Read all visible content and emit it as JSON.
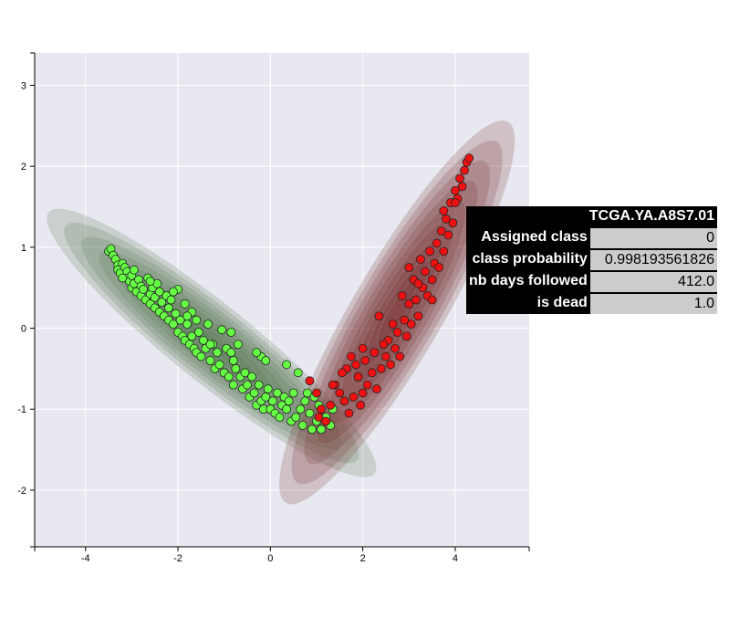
{
  "chart_data": {
    "type": "scatter",
    "title": "",
    "xlabel": "",
    "ylabel": "",
    "xlim": [
      -5.1,
      5.6
    ],
    "ylim": [
      -2.7,
      3.4
    ],
    "xticks": [
      -4,
      -2,
      0,
      2,
      4
    ],
    "yticks": [
      -2,
      -1,
      0,
      1,
      2,
      3
    ],
    "xtick_labels": [
      "-4",
      "-2",
      "0",
      "2",
      "4"
    ],
    "ytick_labels": [
      "-2",
      "-1",
      "0",
      "1",
      "2",
      "3"
    ],
    "background_color": "#e8e8f0",
    "grid": true,
    "series": [
      {
        "color": "#66ff44",
        "density_color": "#5d7d55",
        "points": [
          [
            -3.5,
            0.95
          ],
          [
            -3.45,
            0.98
          ],
          [
            -3.4,
            0.9
          ],
          [
            -3.35,
            0.85
          ],
          [
            -3.3,
            0.78
          ],
          [
            -3.3,
            0.72
          ],
          [
            -3.25,
            0.68
          ],
          [
            -3.2,
            0.8
          ],
          [
            -3.15,
            0.75
          ],
          [
            -3.1,
            0.7
          ],
          [
            -3.1,
            0.62
          ],
          [
            -3.05,
            0.58
          ],
          [
            -3.0,
            0.65
          ],
          [
            -3.0,
            0.5
          ],
          [
            -2.95,
            0.55
          ],
          [
            -2.9,
            0.45
          ],
          [
            -2.85,
            0.6
          ],
          [
            -2.8,
            0.52
          ],
          [
            -2.8,
            0.4
          ],
          [
            -2.75,
            0.48
          ],
          [
            -2.7,
            0.35
          ],
          [
            -2.65,
            0.62
          ],
          [
            -2.6,
            0.42
          ],
          [
            -2.6,
            0.3
          ],
          [
            -2.55,
            0.5
          ],
          [
            -2.5,
            0.38
          ],
          [
            -2.5,
            0.25
          ],
          [
            -2.45,
            0.55
          ],
          [
            -2.4,
            0.45
          ],
          [
            -2.4,
            0.2
          ],
          [
            -2.35,
            0.32
          ],
          [
            -2.3,
            0.15
          ],
          [
            -2.25,
            0.4
          ],
          [
            -2.2,
            0.25
          ],
          [
            -2.2,
            0.1
          ],
          [
            -2.15,
            0.35
          ],
          [
            -2.1,
            0.05
          ],
          [
            -2.05,
            0.18
          ],
          [
            -2.0,
            0.48
          ],
          [
            -2.0,
            -0.05
          ],
          [
            -1.95,
            0.1
          ],
          [
            -1.9,
            -0.1
          ],
          [
            -1.85,
            0.3
          ],
          [
            -1.85,
            -0.15
          ],
          [
            -1.8,
            0.05
          ],
          [
            -1.75,
            -0.2
          ],
          [
            -1.7,
            0.2
          ],
          [
            -1.7,
            -0.1
          ],
          [
            -1.65,
            -0.25
          ],
          [
            -1.6,
            0.1
          ],
          [
            -1.6,
            -0.3
          ],
          [
            -1.55,
            -0.05
          ],
          [
            -1.5,
            -0.35
          ],
          [
            -1.45,
            -0.15
          ],
          [
            -1.4,
            -0.25
          ],
          [
            -1.35,
            0.05
          ],
          [
            -1.3,
            -0.4
          ],
          [
            -1.25,
            -0.2
          ],
          [
            -1.2,
            -0.5
          ],
          [
            -1.15,
            -0.3
          ],
          [
            -1.1,
            -0.45
          ],
          [
            -1.05,
            -0.02
          ],
          [
            -1.0,
            -0.55
          ],
          [
            -0.95,
            -0.25
          ],
          [
            -0.9,
            -0.6
          ],
          [
            -0.85,
            -0.05
          ],
          [
            -0.8,
            -0.4
          ],
          [
            -0.8,
            -0.7
          ],
          [
            -0.75,
            -0.5
          ],
          [
            -0.7,
            -0.2
          ],
          [
            -0.65,
            -0.6
          ],
          [
            -0.6,
            -0.75
          ],
          [
            -0.55,
            -0.55
          ],
          [
            -0.5,
            -0.7
          ],
          [
            -0.45,
            -0.85
          ],
          [
            -0.4,
            -0.6
          ],
          [
            -0.35,
            -0.8
          ],
          [
            -0.3,
            -0.95
          ],
          [
            -0.25,
            -0.7
          ],
          [
            -0.2,
            -0.9
          ],
          [
            -0.15,
            -1.0
          ],
          [
            -0.1,
            -0.85
          ],
          [
            -0.05,
            -0.75
          ],
          [
            0.0,
            -1.0
          ],
          [
            0.05,
            -0.9
          ],
          [
            0.1,
            -1.05
          ],
          [
            0.15,
            -0.8
          ],
          [
            0.2,
            -1.1
          ],
          [
            0.25,
            -0.95
          ],
          [
            0.3,
            -0.85
          ],
          [
            0.35,
            -1.0
          ],
          [
            0.4,
            -0.9
          ],
          [
            0.45,
            -1.15
          ],
          [
            0.5,
            -0.8
          ],
          [
            0.55,
            -1.1
          ],
          [
            0.6,
            -0.55
          ],
          [
            0.65,
            -1.0
          ],
          [
            0.7,
            -1.2
          ],
          [
            0.75,
            -0.9
          ],
          [
            0.8,
            -0.8
          ],
          [
            0.85,
            -1.05
          ],
          [
            0.9,
            -1.25
          ],
          [
            0.95,
            -0.85
          ],
          [
            1.0,
            -1.15
          ],
          [
            1.05,
            -0.95
          ],
          [
            1.1,
            -1.25
          ],
          [
            1.2,
            -1.1
          ],
          [
            1.3,
            -1.2
          ],
          [
            1.35,
            -1.0
          ],
          [
            0.35,
            -0.45
          ],
          [
            -0.2,
            -0.35
          ],
          [
            -0.1,
            -0.4
          ],
          [
            -0.3,
            -0.3
          ],
          [
            -2.1,
            0.45
          ],
          [
            -1.8,
            0.15
          ],
          [
            -2.6,
            0.58
          ],
          [
            -2.95,
            0.72
          ],
          [
            -3.2,
            0.62
          ],
          [
            -1.3,
            -0.2
          ],
          [
            -0.85,
            -0.3
          ]
        ]
      },
      {
        "color": "#ee1111",
        "density_color": "#7a3838",
        "points": [
          [
            0.85,
            -0.65
          ],
          [
            1.0,
            -0.8
          ],
          [
            1.1,
            -1.0
          ],
          [
            1.2,
            -1.15
          ],
          [
            1.3,
            -0.95
          ],
          [
            1.4,
            -0.7
          ],
          [
            1.5,
            -0.8
          ],
          [
            1.6,
            -0.9
          ],
          [
            1.7,
            -1.05
          ],
          [
            1.65,
            -0.5
          ],
          [
            1.75,
            -0.35
          ],
          [
            1.8,
            -0.85
          ],
          [
            1.9,
            -0.6
          ],
          [
            1.95,
            -0.95
          ],
          [
            2.0,
            -0.8
          ],
          [
            2.05,
            -0.4
          ],
          [
            2.1,
            -0.7
          ],
          [
            2.2,
            -0.55
          ],
          [
            2.25,
            -0.3
          ],
          [
            2.3,
            -0.75
          ],
          [
            2.35,
            0.15
          ],
          [
            2.4,
            -0.5
          ],
          [
            2.5,
            -0.35
          ],
          [
            2.55,
            -0.15
          ],
          [
            2.6,
            -0.45
          ],
          [
            2.65,
            0.05
          ],
          [
            2.7,
            -0.25
          ],
          [
            2.75,
            -0.05
          ],
          [
            2.8,
            -0.35
          ],
          [
            2.85,
            0.4
          ],
          [
            2.9,
            0.1
          ],
          [
            2.95,
            -0.1
          ],
          [
            3.0,
            0.3
          ],
          [
            3.05,
            0.05
          ],
          [
            3.1,
            0.6
          ],
          [
            3.15,
            0.35
          ],
          [
            3.2,
            0.15
          ],
          [
            3.25,
            0.85
          ],
          [
            3.3,
            0.5
          ],
          [
            3.35,
            0.7
          ],
          [
            3.4,
            0.4
          ],
          [
            3.45,
            0.95
          ],
          [
            3.5,
            0.6
          ],
          [
            3.55,
            0.8
          ],
          [
            3.6,
            1.05
          ],
          [
            3.65,
            0.75
          ],
          [
            3.7,
            1.2
          ],
          [
            3.75,
            0.95
          ],
          [
            3.8,
            1.35
          ],
          [
            3.85,
            1.15
          ],
          [
            3.9,
            1.55
          ],
          [
            3.95,
            1.3
          ],
          [
            4.0,
            1.7
          ],
          [
            4.05,
            1.6
          ],
          [
            4.1,
            1.85
          ],
          [
            4.15,
            1.75
          ],
          [
            4.2,
            1.95
          ],
          [
            4.25,
            2.05
          ],
          [
            4.3,
            2.1
          ],
          [
            1.35,
            -0.7
          ],
          [
            1.55,
            -0.55
          ],
          [
            1.05,
            -1.1
          ],
          [
            3.0,
            0.75
          ],
          [
            3.75,
            1.45
          ],
          [
            2.0,
            -0.25
          ],
          [
            1.85,
            -0.45
          ],
          [
            2.45,
            -0.2
          ],
          [
            3.2,
            0.55
          ],
          [
            4.0,
            1.55
          ],
          [
            3.5,
            0.35
          ]
        ]
      }
    ]
  },
  "tooltip": {
    "title": "TCGA.YA.A8S7.01",
    "rows": [
      {
        "key": "Assigned class",
        "value": "0"
      },
      {
        "key": "class probability",
        "value": "0.998193561826"
      },
      {
        "key": "nb days followed",
        "value": "412.0"
      },
      {
        "key": "is dead",
        "value": "1.0"
      }
    ]
  }
}
